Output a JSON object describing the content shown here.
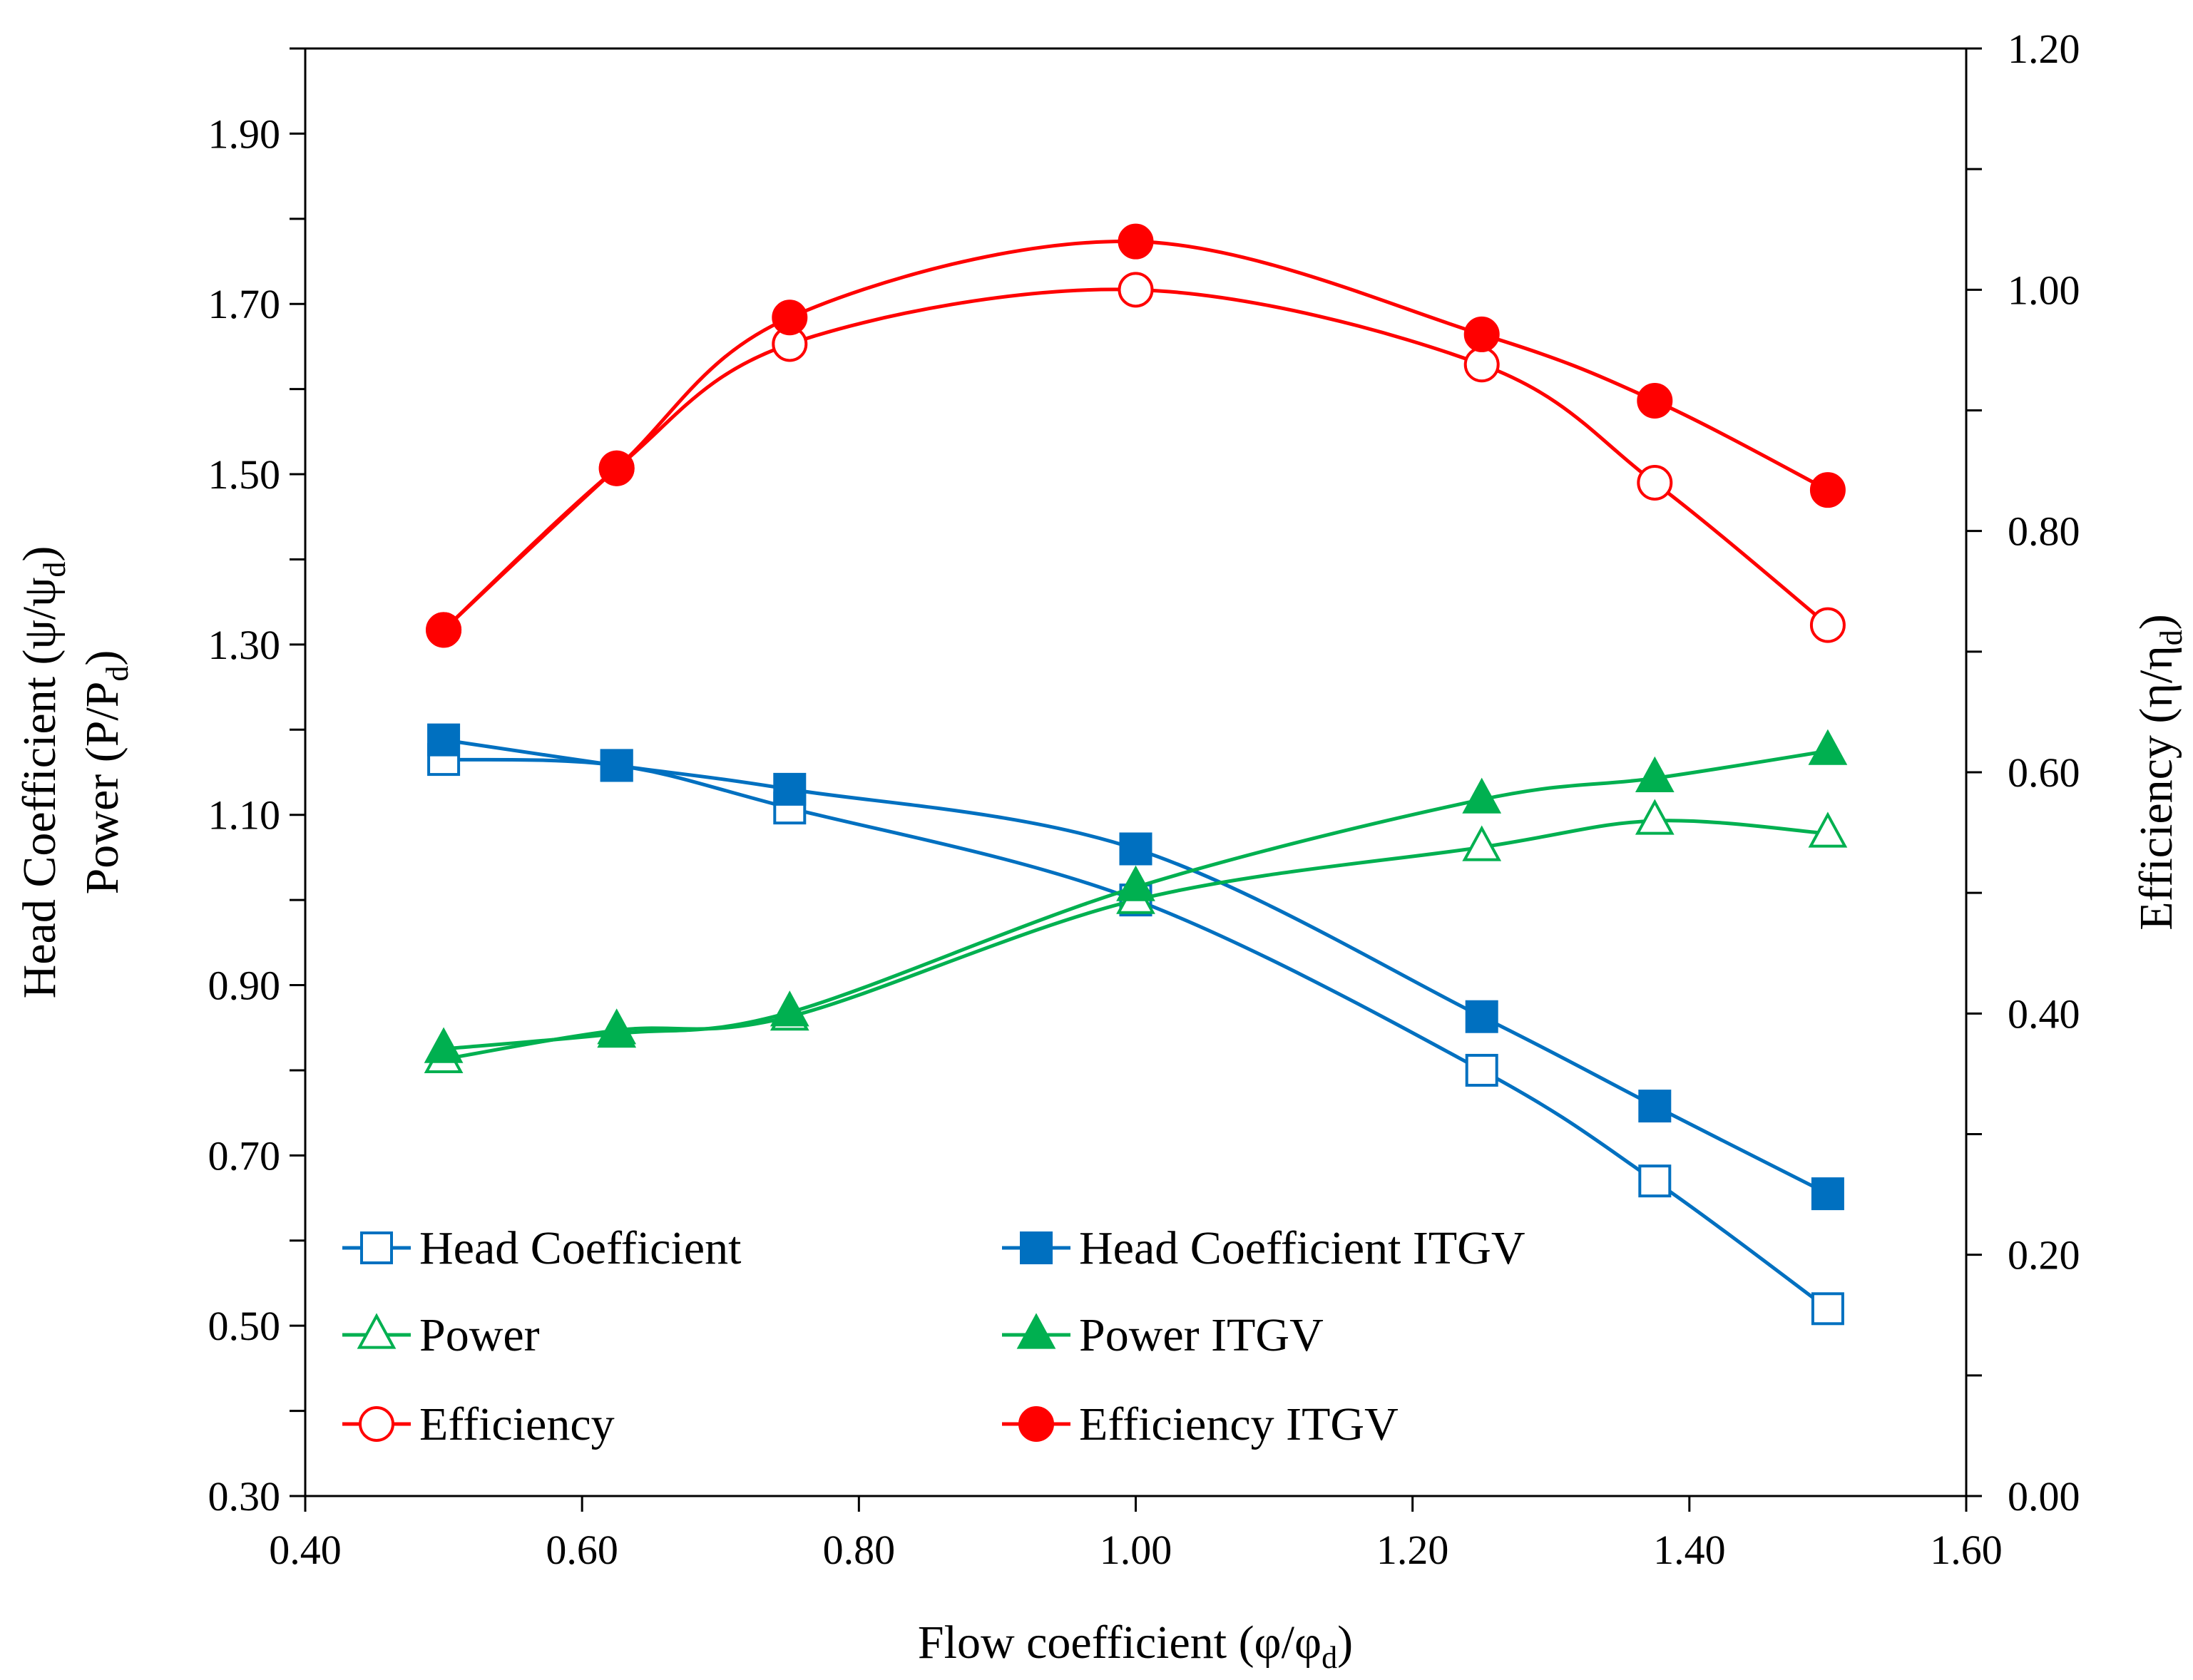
{
  "chart_data": {
    "type": "line",
    "title": "",
    "xlabel": "Flow coefficient (φ/φ",
    "xlabel_sub": "d",
    "xlabel_tail": ")",
    "ylabel_left_line1": "Head Coefficient (ψ/ψ",
    "ylabel_left_line1_sub": "d",
    "ylabel_left_line1_tail": ")",
    "ylabel_left_line2": "Power (P/P",
    "ylabel_left_line2_sub": "d",
    "ylabel_left_line2_tail": ")",
    "ylabel_right": "Efficiency (η/η",
    "ylabel_right_sub": "d",
    "ylabel_right_tail": ")",
    "xlim": [
      0.4,
      1.6
    ],
    "ylim_left": [
      0.3,
      2.0
    ],
    "ylim_right": [
      0.0,
      1.2
    ],
    "x_ticks": [
      "0.40",
      "0.60",
      "0.80",
      "1.00",
      "1.20",
      "1.40",
      "1.60"
    ],
    "y_left_ticks": [
      "0.30",
      "0.50",
      "0.70",
      "0.90",
      "1.10",
      "1.30",
      "1.50",
      "1.70",
      "1.90"
    ],
    "y_right_ticks": [
      "0.00",
      "0.20",
      "0.40",
      "0.60",
      "0.80",
      "1.00",
      "1.20"
    ],
    "x": [
      0.5,
      0.625,
      0.75,
      1.0,
      1.25,
      1.375,
      1.5
    ],
    "series": [
      {
        "name": "Head Coefficient",
        "axis": "left",
        "marker": "square",
        "filled": false,
        "color": "#0070C0",
        "values": [
          1.165,
          1.158,
          1.108,
          1.0,
          0.8,
          0.67,
          0.52
        ]
      },
      {
        "name": "Head Coefficient ITGV",
        "axis": "left",
        "marker": "square",
        "filled": true,
        "color": "#0070C0",
        "values": [
          1.188,
          1.158,
          1.13,
          1.06,
          0.863,
          0.758,
          0.655
        ]
      },
      {
        "name": "Power",
        "axis": "left",
        "marker": "triangle",
        "filled": false,
        "color": "#00B050",
        "values": [
          0.813,
          0.847,
          0.863,
          1.0,
          1.062,
          1.093,
          1.078
        ]
      },
      {
        "name": "Power ITGV",
        "axis": "left",
        "marker": "triangle",
        "filled": true,
        "color": "#00B050",
        "values": [
          0.825,
          0.843,
          0.868,
          1.015,
          1.118,
          1.143,
          1.175
        ]
      },
      {
        "name": "Efficiency",
        "axis": "right",
        "marker": "circle",
        "filled": false,
        "color": "#FF0000",
        "values": [
          0.718,
          0.852,
          0.955,
          1.0,
          0.938,
          0.84,
          0.722
        ]
      },
      {
        "name": "Efficiency ITGV",
        "axis": "right",
        "marker": "circle",
        "filled": true,
        "color": "#FF0000",
        "values": [
          0.718,
          0.852,
          0.977,
          1.04,
          0.963,
          0.908,
          0.834
        ]
      }
    ],
    "legend": [
      "Head Coefficient",
      "Head Coefficient ITGV",
      "Power",
      "Power ITGV",
      "Efficiency",
      "Efficiency ITGV"
    ],
    "legend_position": "bottom-left, inside plot",
    "grid": false
  }
}
